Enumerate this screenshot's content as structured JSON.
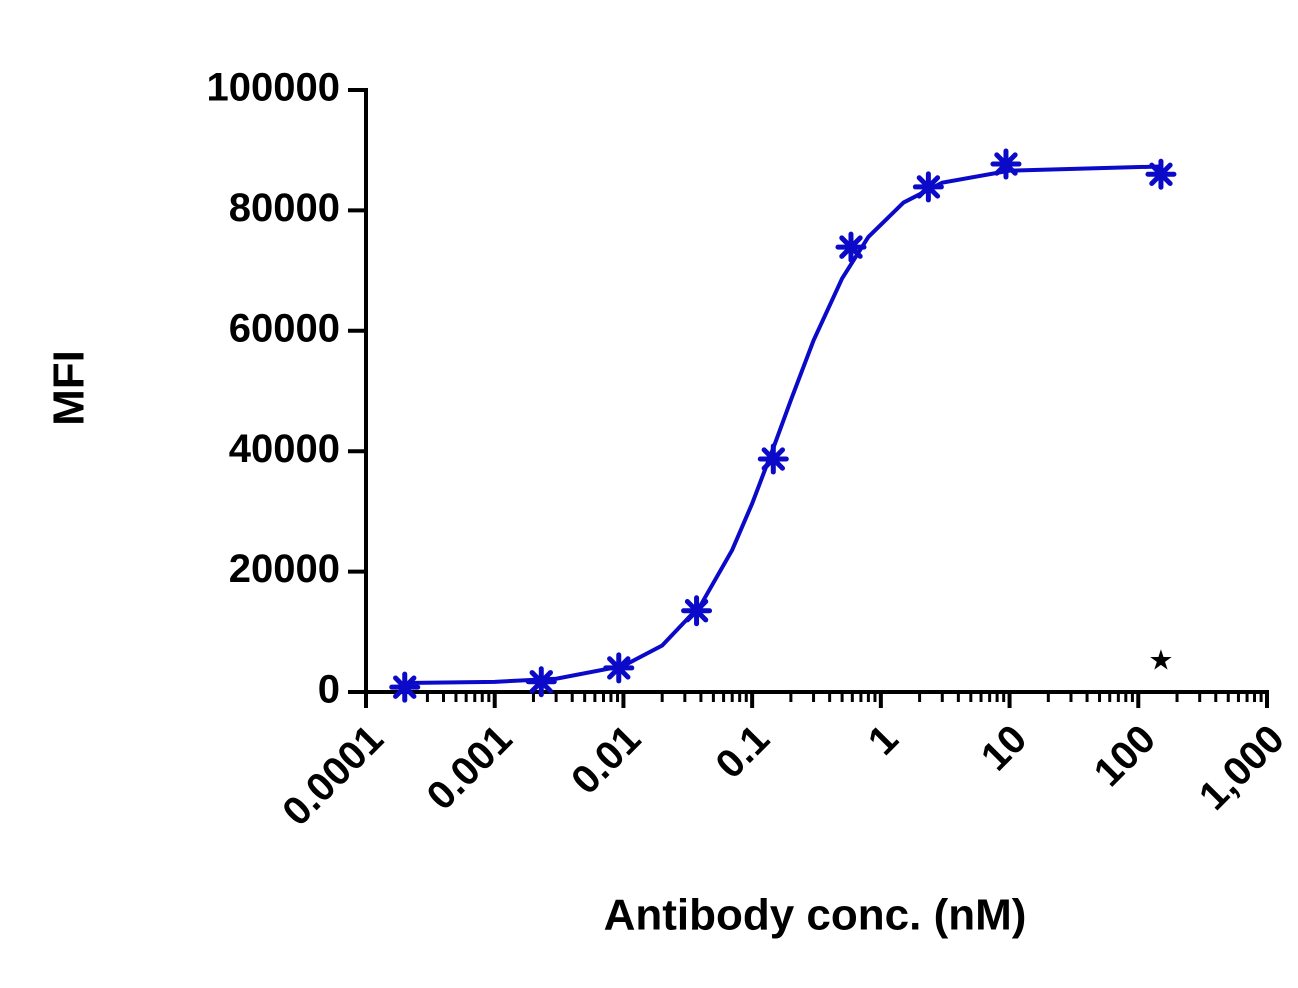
{
  "chart_data": {
    "type": "scatter",
    "x_label": "Antibody conc. (nM)",
    "y_label": "MFI",
    "log_x": true,
    "xlim": [
      0.0001,
      1000
    ],
    "ylim": [
      0,
      100000
    ],
    "xticks": [
      0.0001,
      0.001,
      0.01,
      0.1,
      1,
      10,
      100,
      {
        "value": 1000,
        "label": "1,000"
      }
    ],
    "xminorticks": [
      0.0002,
      0.0003,
      0.0004,
      0.0005,
      0.0006,
      0.0007,
      0.0008,
      0.0009,
      0.002,
      0.003,
      0.004,
      0.005,
      0.006,
      0.007,
      0.008,
      0.009,
      0.02,
      0.03,
      0.04,
      0.05,
      0.06,
      0.07,
      0.08,
      0.09,
      0.2,
      0.3,
      0.4,
      0.5,
      0.6,
      0.7,
      0.8,
      0.9,
      2,
      3,
      4,
      5,
      6,
      7,
      8,
      9,
      20,
      30,
      40,
      50,
      60,
      70,
      80,
      90,
      200,
      300,
      400,
      500,
      600,
      700,
      800,
      900
    ],
    "yticks": [
      0,
      20000,
      40000,
      60000,
      80000,
      100000
    ],
    "series": [
      {
        "color": "#0a0ac8",
        "marker": "asterisk",
        "x": [
          0.0002,
          0.0023,
          0.0092,
          0.037,
          0.146,
          0.586,
          2.34,
          9.375,
          150
        ],
        "values": [
          800,
          1700,
          4000,
          13500,
          38700,
          73900,
          83900,
          87700,
          86000
        ]
      },
      {
        "color": "#0a0ac8",
        "marker": "none",
        "x": [
          0.0002,
          0.001,
          0.003,
          0.01,
          0.02,
          0.04,
          0.07,
          0.1,
          0.15,
          0.2,
          0.3,
          0.5,
          0.8,
          1.5,
          3,
          10,
          150
        ],
        "values": [
          1500,
          1690,
          2200,
          4350,
          7730,
          14500,
          23600,
          31300,
          41200,
          48500,
          58400,
          68700,
          75600,
          81300,
          84600,
          86600,
          87300
        ]
      }
    ],
    "annotations": [
      {
        "text": "★",
        "x": 150,
        "y": 5000
      }
    ]
  }
}
